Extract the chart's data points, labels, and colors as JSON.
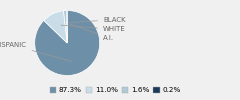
{
  "labels": [
    "HISPANIC",
    "WHITE",
    "BLACK",
    "A.I."
  ],
  "values": [
    87.3,
    11.0,
    1.6,
    0.2
  ],
  "colors": [
    "#6e8fa8",
    "#c8dde8",
    "#b0cad6",
    "#1a3a5c"
  ],
  "legend_colors": [
    "#6e8fa8",
    "#c8dde8",
    "#b0cad6",
    "#1a3a5c"
  ],
  "legend_labels": [
    "87.3%",
    "11.0%",
    "1.6%",
    "0.2%"
  ],
  "label_fontsize": 5.0,
  "legend_fontsize": 5.2,
  "bg_color": "#f0f0f0"
}
